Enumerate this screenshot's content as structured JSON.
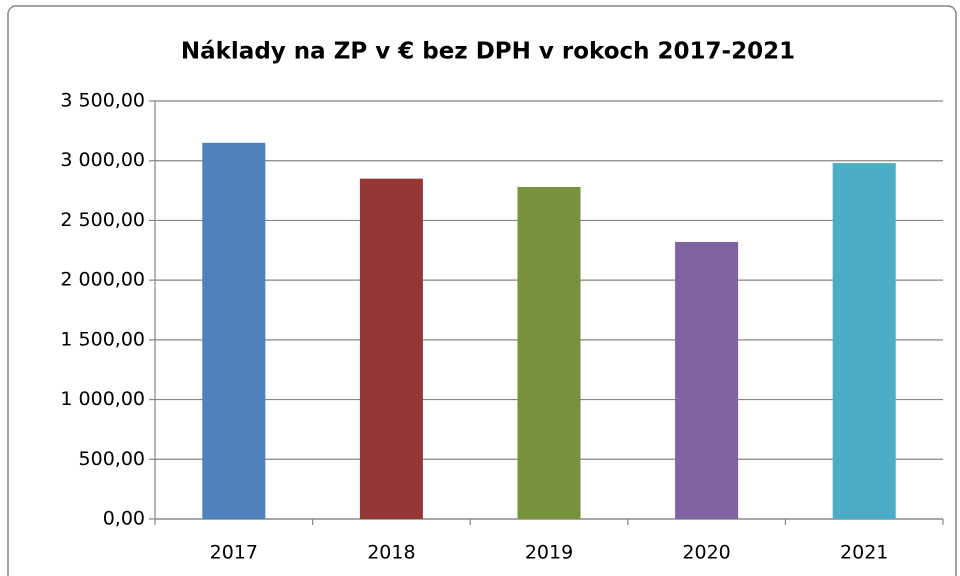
{
  "chart_data": {
    "type": "bar",
    "title": "Náklady na ZP v € bez DPH v rokoch 2017-2021",
    "categories": [
      "2017",
      "2018",
      "2019",
      "2020",
      "2021"
    ],
    "values": [
      3150,
      2850,
      2780,
      2320,
      2980
    ],
    "colors": [
      "#4f81bd",
      "#953735",
      "#76923c",
      "#8064a2",
      "#4bacc6"
    ],
    "ylim": [
      0,
      3500
    ],
    "yticks": [
      {
        "value": 0,
        "label": "0,00"
      },
      {
        "value": 500,
        "label": "500,00"
      },
      {
        "value": 1000,
        "label": "1 000,00"
      },
      {
        "value": 1500,
        "label": "1 500,00"
      },
      {
        "value": 2000,
        "label": "2 000,00"
      },
      {
        "value": 2500,
        "label": "2 500,00"
      },
      {
        "value": 3000,
        "label": "3 000,00"
      },
      {
        "value": 3500,
        "label": "3 500,00"
      }
    ],
    "grid": true
  }
}
